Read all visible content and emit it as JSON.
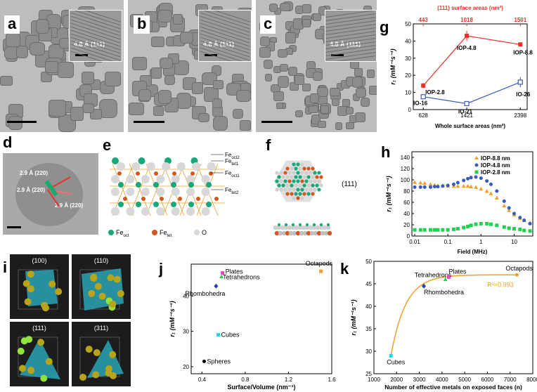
{
  "labels": {
    "a": "a",
    "b": "b",
    "c": "c",
    "d": "d",
    "e": "e",
    "f": "f",
    "g": "g",
    "h": "h",
    "i": "i",
    "j": "j",
    "k": "k"
  },
  "insets": {
    "a": "4.8 Å (111)",
    "b": "4.8 Å (111)",
    "c": "4.8 Å (111)"
  },
  "panel_d": {
    "l1": "2.9 Å (220)",
    "l2": "2.9 Å (220)",
    "l3": "2.9 Å (220)"
  },
  "panel_e": {
    "layers": [
      "Fe",
      "Fe",
      "Fe",
      "Fe"
    ],
    "layer_subs": [
      "oct2",
      "tet1",
      "oct1",
      "tet2"
    ],
    "legend": [
      {
        "main": "Fe",
        "sub": "oct",
        "color": "#1aa77b"
      },
      {
        "main": "Fe",
        "sub": "tet",
        "color": "#d2581f"
      },
      {
        "main": "O",
        "sub": "",
        "color": "#d8d8d8"
      }
    ]
  },
  "panel_f": {
    "label": "(111)"
  },
  "panel_i": {
    "faces": [
      "(100)",
      "(110)",
      "(111)",
      "(311)"
    ]
  },
  "chart_data": [
    {
      "id": "g",
      "type": "line",
      "xlabel": "Whole surface areas (nm²)",
      "x2label": "(111) surface areas (nm²)",
      "ylabel": "r₁ (mM⁻¹s⁻¹)",
      "x": [
        628,
        1421,
        2398
      ],
      "x_ticks": [
        "628",
        "1421",
        "2398"
      ],
      "x2_ticks": [
        "443",
        "1018",
        "1501"
      ],
      "ylim": [
        0,
        50
      ],
      "y_ticks": [
        "0",
        "10",
        "20",
        "30",
        "40",
        "50"
      ],
      "series": [
        {
          "color": "#e8312a",
          "values": [
            14,
            43,
            38
          ],
          "errors": [
            1.5,
            3,
            1
          ],
          "labels": [
            "IOP-2.8",
            "IOP-4.8",
            "IOP-8.8"
          ]
        },
        {
          "color": "#3a5bbd",
          "values": [
            7.5,
            3.5,
            16
          ],
          "errors": [
            1,
            1,
            3
          ],
          "labels": [
            "IO-16",
            "IO-21",
            "IO-26"
          ]
        }
      ]
    },
    {
      "id": "h",
      "type": "scatter",
      "xlabel": "Field (MHz)",
      "ylabel": "r₁ (mM⁻¹s⁻¹)",
      "xscale": "log",
      "xlim": [
        0.01,
        30
      ],
      "x_ticks": [
        "0.01",
        "0.1",
        "1",
        "10"
      ],
      "ylim": [
        0,
        150
      ],
      "y_ticks": [
        "0",
        "20",
        "40",
        "60",
        "80",
        "100",
        "120",
        "140"
      ],
      "legend": "top-right",
      "series": [
        {
          "name": "IOP-8.8 nm",
          "color": "#f2a027",
          "x": [
            0.01,
            0.015,
            0.02,
            0.03,
            0.04,
            0.05,
            0.07,
            0.1,
            0.15,
            0.2,
            0.3,
            0.4,
            0.5,
            0.7,
            1,
            1.5,
            2,
            3,
            5,
            7,
            10,
            15,
            20,
            30
          ],
          "y": [
            96,
            95,
            94,
            92,
            91,
            90,
            90,
            89,
            89,
            89,
            89,
            89,
            88,
            87,
            84,
            80,
            76,
            68,
            54,
            46,
            38,
            32,
            28,
            24
          ]
        },
        {
          "name": "IOP-4.8 nm",
          "color": "#3a5bbd",
          "x": [
            0.01,
            0.015,
            0.02,
            0.03,
            0.04,
            0.05,
            0.07,
            0.1,
            0.15,
            0.2,
            0.3,
            0.4,
            0.5,
            0.7,
            1,
            1.5,
            2,
            3,
            5,
            7,
            10,
            15,
            20,
            30
          ],
          "y": [
            87,
            87,
            87,
            87,
            88,
            88,
            89,
            90,
            92,
            95,
            99,
            102,
            104,
            105,
            103,
            98,
            92,
            80,
            62,
            50,
            40,
            33,
            28,
            22
          ]
        },
        {
          "name": "IOP-2.8 nm",
          "color": "#1fd14e",
          "x": [
            0.01,
            0.015,
            0.02,
            0.03,
            0.04,
            0.05,
            0.07,
            0.1,
            0.15,
            0.2,
            0.3,
            0.4,
            0.5,
            0.7,
            1,
            1.5,
            2,
            3,
            5,
            7,
            10,
            15,
            20,
            30
          ],
          "y": [
            11,
            11,
            11,
            11,
            11,
            11,
            11,
            11,
            12,
            13,
            15,
            17,
            19,
            21,
            22,
            22,
            21,
            19,
            16,
            14,
            13,
            12,
            10,
            9
          ]
        }
      ]
    },
    {
      "id": "j",
      "type": "scatter",
      "xlabel": "Surface/Volume (nm⁻¹)",
      "ylabel": "r₁ (mM⁻¹s⁻¹)",
      "xlim": [
        0.3,
        1.6
      ],
      "x_ticks": [
        "0.4",
        "0.8",
        "1.2",
        "1.6"
      ],
      "ylim": [
        18,
        49
      ],
      "y_ticks": [
        "20",
        "30",
        "40"
      ],
      "points": [
        {
          "label": "Spheres",
          "x": 0.42,
          "y": 21.5,
          "color": "#000000"
        },
        {
          "label": "Cubes",
          "x": 0.55,
          "y": 29,
          "color": "#29d3e6"
        },
        {
          "label": "Rhombohedra",
          "x": 0.53,
          "y": 42.8,
          "color": "#1f3fb0"
        },
        {
          "label": "Tetrahedrons",
          "x": 0.58,
          "y": 45.5,
          "color": "#1fd14e"
        },
        {
          "label": "Plates",
          "x": 0.59,
          "y": 46.5,
          "color": "#e84ab8"
        },
        {
          "label": "Octapods",
          "x": 1.5,
          "y": 47,
          "color": "#f2a027"
        }
      ]
    },
    {
      "id": "k",
      "type": "scatter",
      "xlabel": "Number of effective metals on exposed faces (n)",
      "ylabel": "r₁ (mM⁻¹s⁻¹)",
      "xlim": [
        1000,
        8000
      ],
      "x_ticks": [
        "1000",
        "2000",
        "3000",
        "4000",
        "5000",
        "6000",
        "7000",
        "8000"
      ],
      "ylim": [
        25,
        50
      ],
      "y_ticks": [
        "25",
        "30",
        "35",
        "40",
        "45",
        "50"
      ],
      "fit_label": "R²=0.993",
      "points": [
        {
          "label": "Cubes",
          "x": 1750,
          "y": 29,
          "color": "#29d3e6"
        },
        {
          "label": "Rhombohedra",
          "x": 3200,
          "y": 44.5,
          "color": "#1f3fb0"
        },
        {
          "label": "Tetrahedrons",
          "x": 4150,
          "y": 46,
          "color": "#1fd14e"
        },
        {
          "label": "Plates",
          "x": 4300,
          "y": 46.5,
          "color": "#e84ab8"
        },
        {
          "label": "Octapods",
          "x": 7300,
          "y": 47,
          "color": "#f2a027"
        }
      ]
    }
  ]
}
